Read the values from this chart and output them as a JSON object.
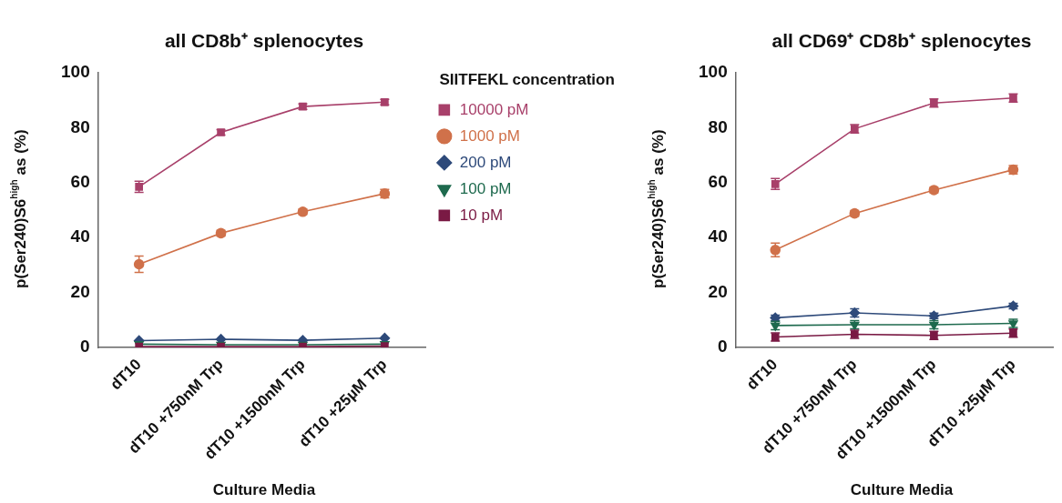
{
  "chart_data": [
    {
      "type": "line",
      "title": "all CD8b⁺ splenocytes",
      "xlabel": "Culture Media",
      "ylabel": "p(Ser240)S6$^{high}$ as (%)",
      "legend_title": "SIITFEKL concentration",
      "legend": "right",
      "grid": false,
      "categories": [
        "dT10",
        "dT10 +750nM Trp",
        "dT10 +1500nM Trp",
        "dT10 +25µM Trp"
      ],
      "ylim": [
        0,
        100
      ],
      "yticks": [
        0,
        20,
        40,
        60,
        80,
        100
      ],
      "series": [
        {
          "name": "10000 pM",
          "color": "#a8406a",
          "marker": "square",
          "values": [
            58.5,
            78.3,
            87.7,
            89.3
          ],
          "errors": [
            2,
            1,
            1,
            1
          ]
        },
        {
          "name": "1000 pM",
          "color": "#d0714a",
          "marker": "circle",
          "values": [
            30.3,
            41.6,
            49.4,
            56
          ],
          "errors": [
            3,
            1,
            1,
            1.5
          ]
        },
        {
          "name": "200 pM",
          "color": "#2e4a7a",
          "marker": "diamond",
          "values": [
            2.5,
            3,
            2.6,
            3.4
          ]
        },
        {
          "name": "100 pM",
          "color": "#1e6a4e",
          "marker": "triangle",
          "values": [
            1.2,
            1,
            1,
            1.2
          ]
        },
        {
          "name": "10 pM",
          "color": "#7a1a44",
          "marker": "square",
          "values": [
            0.3,
            0.3,
            0.3,
            0.5
          ]
        }
      ]
    },
    {
      "type": "line",
      "title": "all CD69⁺ CD8b⁺ splenocytes",
      "xlabel": "Culture Media",
      "ylabel": "p(Ser240)S6$^{high}$ as (%)",
      "grid": false,
      "categories": [
        "dT10",
        "dT10 +750nM Trp",
        "dT10 +1500nM Trp",
        "dT10 +25µM Trp"
      ],
      "ylim": [
        0,
        100
      ],
      "yticks": [
        0,
        20,
        40,
        60,
        80,
        100
      ],
      "series": [
        {
          "color": "#a8406a",
          "marker": "square",
          "values": [
            59.5,
            79.6,
            89,
            90.8
          ],
          "errors": [
            2,
            1.5,
            1.5,
            1.5
          ]
        },
        {
          "color": "#d0714a",
          "marker": "circle",
          "values": [
            35.5,
            48.8,
            57.3,
            64.7
          ],
          "errors": [
            2.5,
            1,
            1,
            1.5
          ]
        },
        {
          "color": "#2e4a7a",
          "marker": "diamond",
          "values": [
            10.8,
            12.6,
            11.5,
            15.1
          ],
          "errors": [
            1,
            1.5,
            1,
            1
          ]
        },
        {
          "color": "#1e6a4e",
          "marker": "triangle",
          "values": [
            8,
            8.3,
            8.3,
            8.8
          ],
          "errors": [
            1.5,
            1.5,
            1.5,
            1.5
          ]
        },
        {
          "color": "#7a1a44",
          "marker": "square",
          "values": [
            3.8,
            4.8,
            4.4,
            5.2
          ],
          "errors": [
            1.5,
            1.5,
            1.5,
            1.5
          ]
        }
      ]
    }
  ]
}
